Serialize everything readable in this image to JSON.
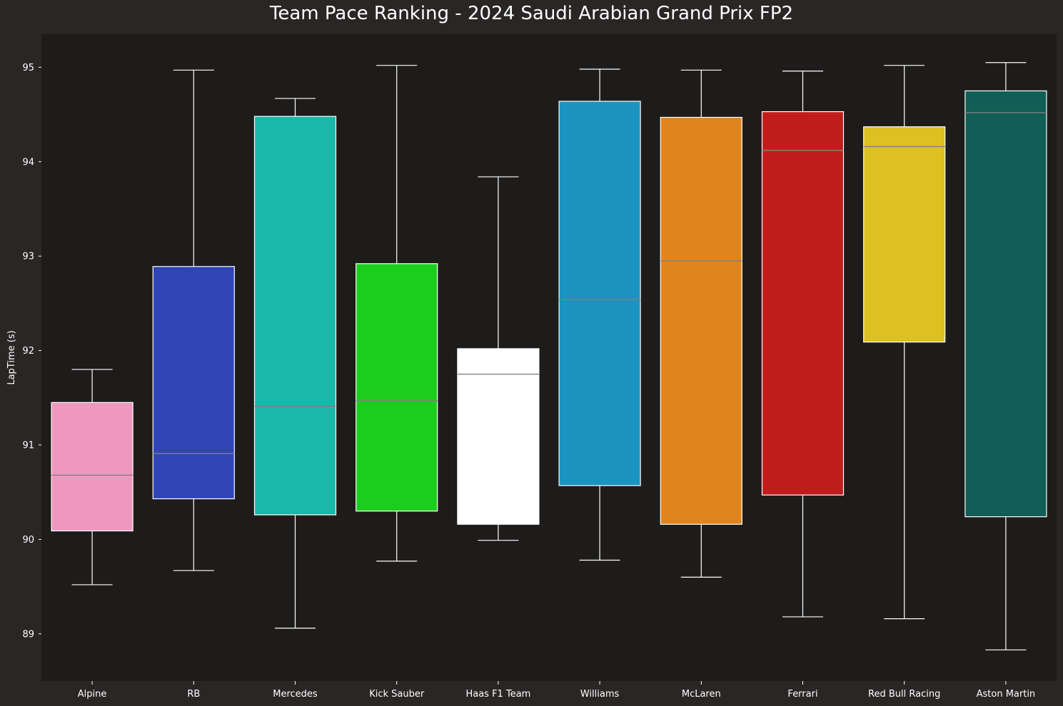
{
  "chart_data": {
    "type": "box",
    "title": "Team Pace Ranking - 2024 Saudi Arabian Grand Prix FP2",
    "xlabel": "",
    "ylabel": "LapTime (s)",
    "ylim": [
      88.5,
      95.35
    ],
    "yticks": [
      "89",
      "90",
      "91",
      "92",
      "93",
      "94",
      "95"
    ],
    "grid": false,
    "categories": [
      "Alpine",
      "RB",
      "Mercedes",
      "Kick Sauber",
      "Haas F1 Team",
      "Williams",
      "McLaren",
      "Ferrari",
      "Red Bull Racing",
      "Aston Martin"
    ],
    "colors": [
      "#f097bf",
      "#2f44b5",
      "#1ab8aa",
      "#1dcd1e",
      "#ffffff",
      "#1b93c1",
      "#e0851e",
      "#c11c1c",
      "#dcc121",
      "#105e56"
    ],
    "boxes": [
      {
        "team": "Alpine",
        "whisker_low": 89.52,
        "q1": 90.09,
        "median": 90.68,
        "q3": 91.45,
        "whisker_high": 91.8
      },
      {
        "team": "RB",
        "whisker_low": 89.67,
        "q1": 90.43,
        "median": 90.91,
        "q3": 92.89,
        "whisker_high": 94.97
      },
      {
        "team": "Mercedes",
        "whisker_low": 89.06,
        "q1": 90.26,
        "median": 91.41,
        "q3": 94.48,
        "whisker_high": 94.67
      },
      {
        "team": "Kick Sauber",
        "whisker_low": 89.77,
        "q1": 90.3,
        "median": 91.47,
        "q3": 92.92,
        "whisker_high": 95.02
      },
      {
        "team": "Haas F1 Team",
        "whisker_low": 89.99,
        "q1": 90.16,
        "median": 91.75,
        "q3": 92.02,
        "whisker_high": 93.84
      },
      {
        "team": "Williams",
        "whisker_low": 89.78,
        "q1": 90.57,
        "median": 92.54,
        "q3": 94.64,
        "whisker_high": 94.98
      },
      {
        "team": "McLaren",
        "whisker_low": 89.6,
        "q1": 90.16,
        "median": 92.95,
        "q3": 94.47,
        "whisker_high": 94.97
      },
      {
        "team": "Ferrari",
        "whisker_low": 89.18,
        "q1": 90.47,
        "median": 94.12,
        "q3": 94.53,
        "whisker_high": 94.96
      },
      {
        "team": "Red Bull Racing",
        "whisker_low": 89.16,
        "q1": 92.09,
        "median": 94.16,
        "q3": 94.37,
        "whisker_high": 95.02
      },
      {
        "team": "Aston Martin",
        "whisker_low": 88.83,
        "q1": 90.24,
        "median": 94.52,
        "q3": 94.75,
        "whisker_high": 95.05
      }
    ]
  },
  "colors": {
    "figure_background": "#292625",
    "axes_background": "#1e1c1b",
    "box_edge": "#ffffff",
    "whisker": "#ffffff",
    "median": "#808080",
    "text": "#ffffff"
  }
}
